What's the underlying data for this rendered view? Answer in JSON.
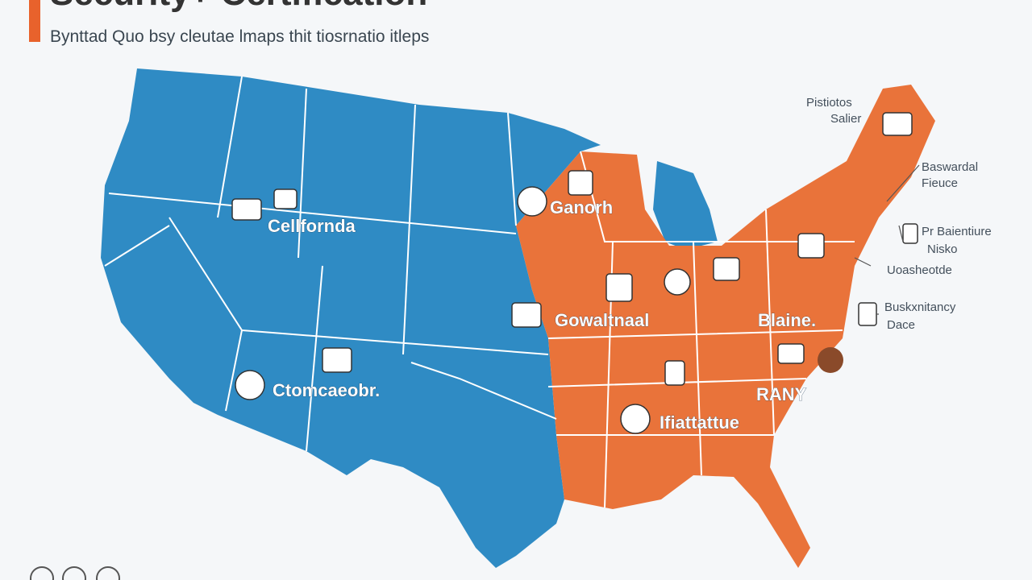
{
  "header": {
    "title": "Security+ Certification",
    "subtitle": "Bynttad Quo bsy cleutae lmaps thit tiosrnatio itleps"
  },
  "map": {
    "labels": [
      "Cellforndа",
      "Ganorh",
      "Gowaltnaal",
      "Ctomcaeobr.",
      "Blaine.",
      "RANY",
      "Ifiattattue"
    ]
  },
  "callouts": [
    "Pistiotos",
    "Salier",
    "Baswardal",
    "Fieuce",
    "Pr Baientiure",
    "Nisko",
    "Uoasheotde",
    "Buskxnitancy",
    "Dace"
  ]
}
